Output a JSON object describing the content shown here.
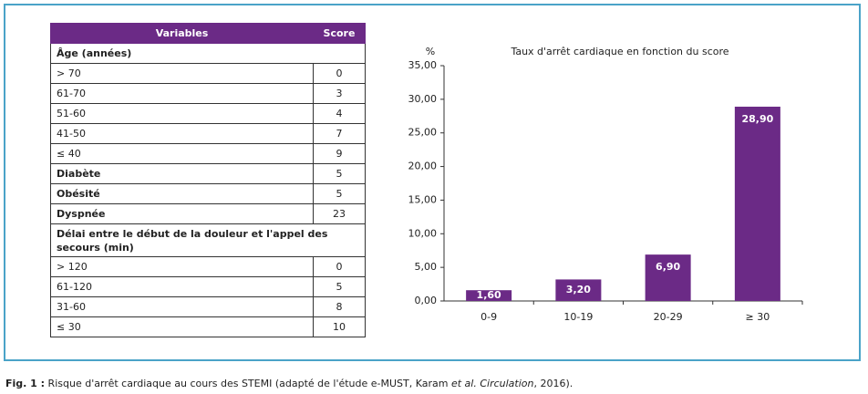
{
  "table": {
    "header": [
      "Variables",
      "Score"
    ],
    "rows": [
      [
        "Âge (années)"
      ],
      [
        "> 70",
        0
      ],
      [
        "61-70",
        3
      ],
      [
        "51-60",
        4
      ],
      [
        "41-50",
        7
      ],
      [
        "≤ 40",
        9
      ],
      [
        "Diabète",
        5
      ],
      [
        "Obésité",
        5
      ],
      [
        "Dyspnée",
        23
      ],
      [
        "Délai entre le début de la douleur et l'appel des secours (min)"
      ],
      [
        "> 120",
        0
      ],
      [
        "61-120",
        5
      ],
      [
        "31-60",
        8
      ],
      [
        "≤ 30",
        10
      ]
    ]
  },
  "chart_data": {
    "type": "bar",
    "title": "Taux d'arrêt cardiaque en fonction du score",
    "y_label": "%",
    "categories": [
      "0-9",
      "10-19",
      "20-29",
      "≥ 30"
    ],
    "values": [
      1.6,
      3.2,
      6.9,
      28.9
    ],
    "value_labels": [
      "1,60",
      "3,20",
      "6,90",
      "28,90"
    ],
    "color": "#6b2a86",
    "ylim": [
      0,
      35
    ],
    "yticks": [
      {
        "value": 0,
        "label": "0,00"
      },
      {
        "value": 5,
        "label": "5,00"
      },
      {
        "value": 10,
        "label": "10,00"
      },
      {
        "value": 15,
        "label": "15,00"
      },
      {
        "value": 20,
        "label": "20,00"
      },
      {
        "value": 25,
        "label": "25,00"
      },
      {
        "value": 30,
        "label": "30,00"
      },
      {
        "value": 35,
        "label": "35,00"
      }
    ]
  },
  "caption": {
    "label": "Fig. 1 :",
    "text": " Risque d'arrêt cardiaque au cours des STEMI (adapté de l'étude e-MUST, Karam ",
    "italic": "et al. Circulation",
    "end": ", 2016)."
  }
}
